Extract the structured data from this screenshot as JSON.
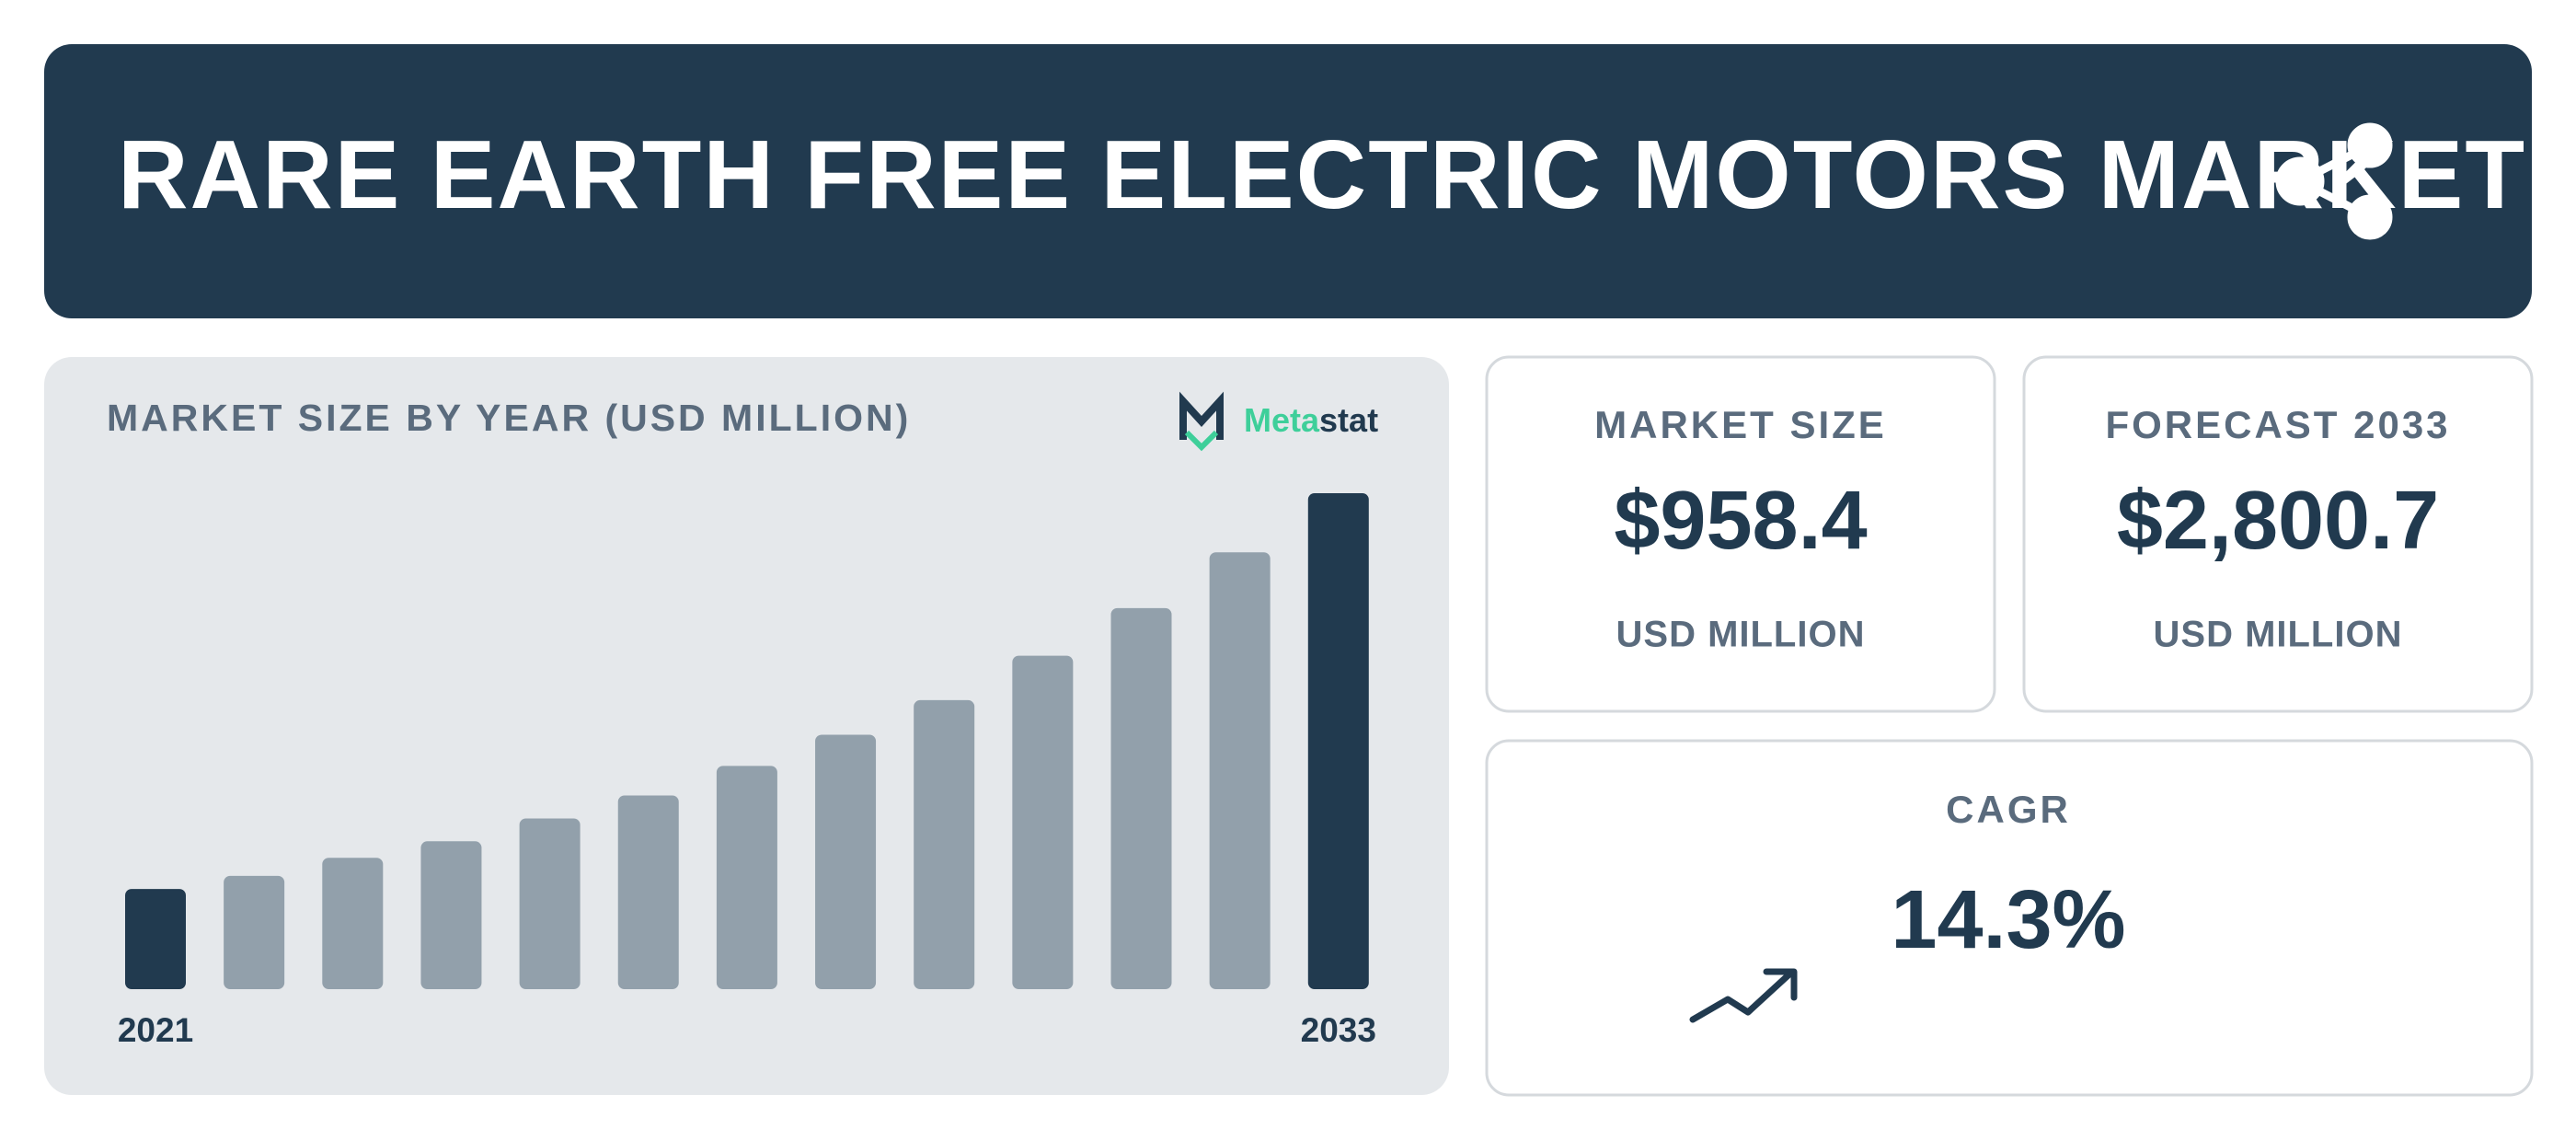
{
  "header": {
    "title": "RARE EARTH FREE ELECTRIC MOTORS MARKET"
  },
  "chart_data": {
    "type": "bar",
    "title": "MARKET SIZE BY YEAR (USD MILLION)",
    "categories": [
      "2021",
      null,
      null,
      null,
      null,
      null,
      null,
      null,
      null,
      null,
      null,
      null,
      "2033"
    ],
    "values": [
      566,
      640,
      742,
      835,
      964,
      1094,
      1261,
      1437,
      1632,
      1883,
      2152,
      2467,
      2800.7
    ],
    "colors": [
      "#213a4f",
      "#92a0ab",
      "#92a0ab",
      "#92a0ab",
      "#92a0ab",
      "#92a0ab",
      "#92a0ab",
      "#92a0ab",
      "#92a0ab",
      "#92a0ab",
      "#92a0ab",
      "#92a0ab",
      "#213a4f"
    ]
  },
  "logo": {
    "part1": "Meta",
    "part2": "stat"
  },
  "cards": [
    {
      "label": "MARKET SIZE",
      "value": "$958.4",
      "unit": "USD MILLION"
    },
    {
      "label": "FORECAST 2033",
      "value": "$2,800.7",
      "unit": "USD MILLION"
    },
    {
      "label": "CAGR",
      "value": "14.3%"
    }
  ]
}
